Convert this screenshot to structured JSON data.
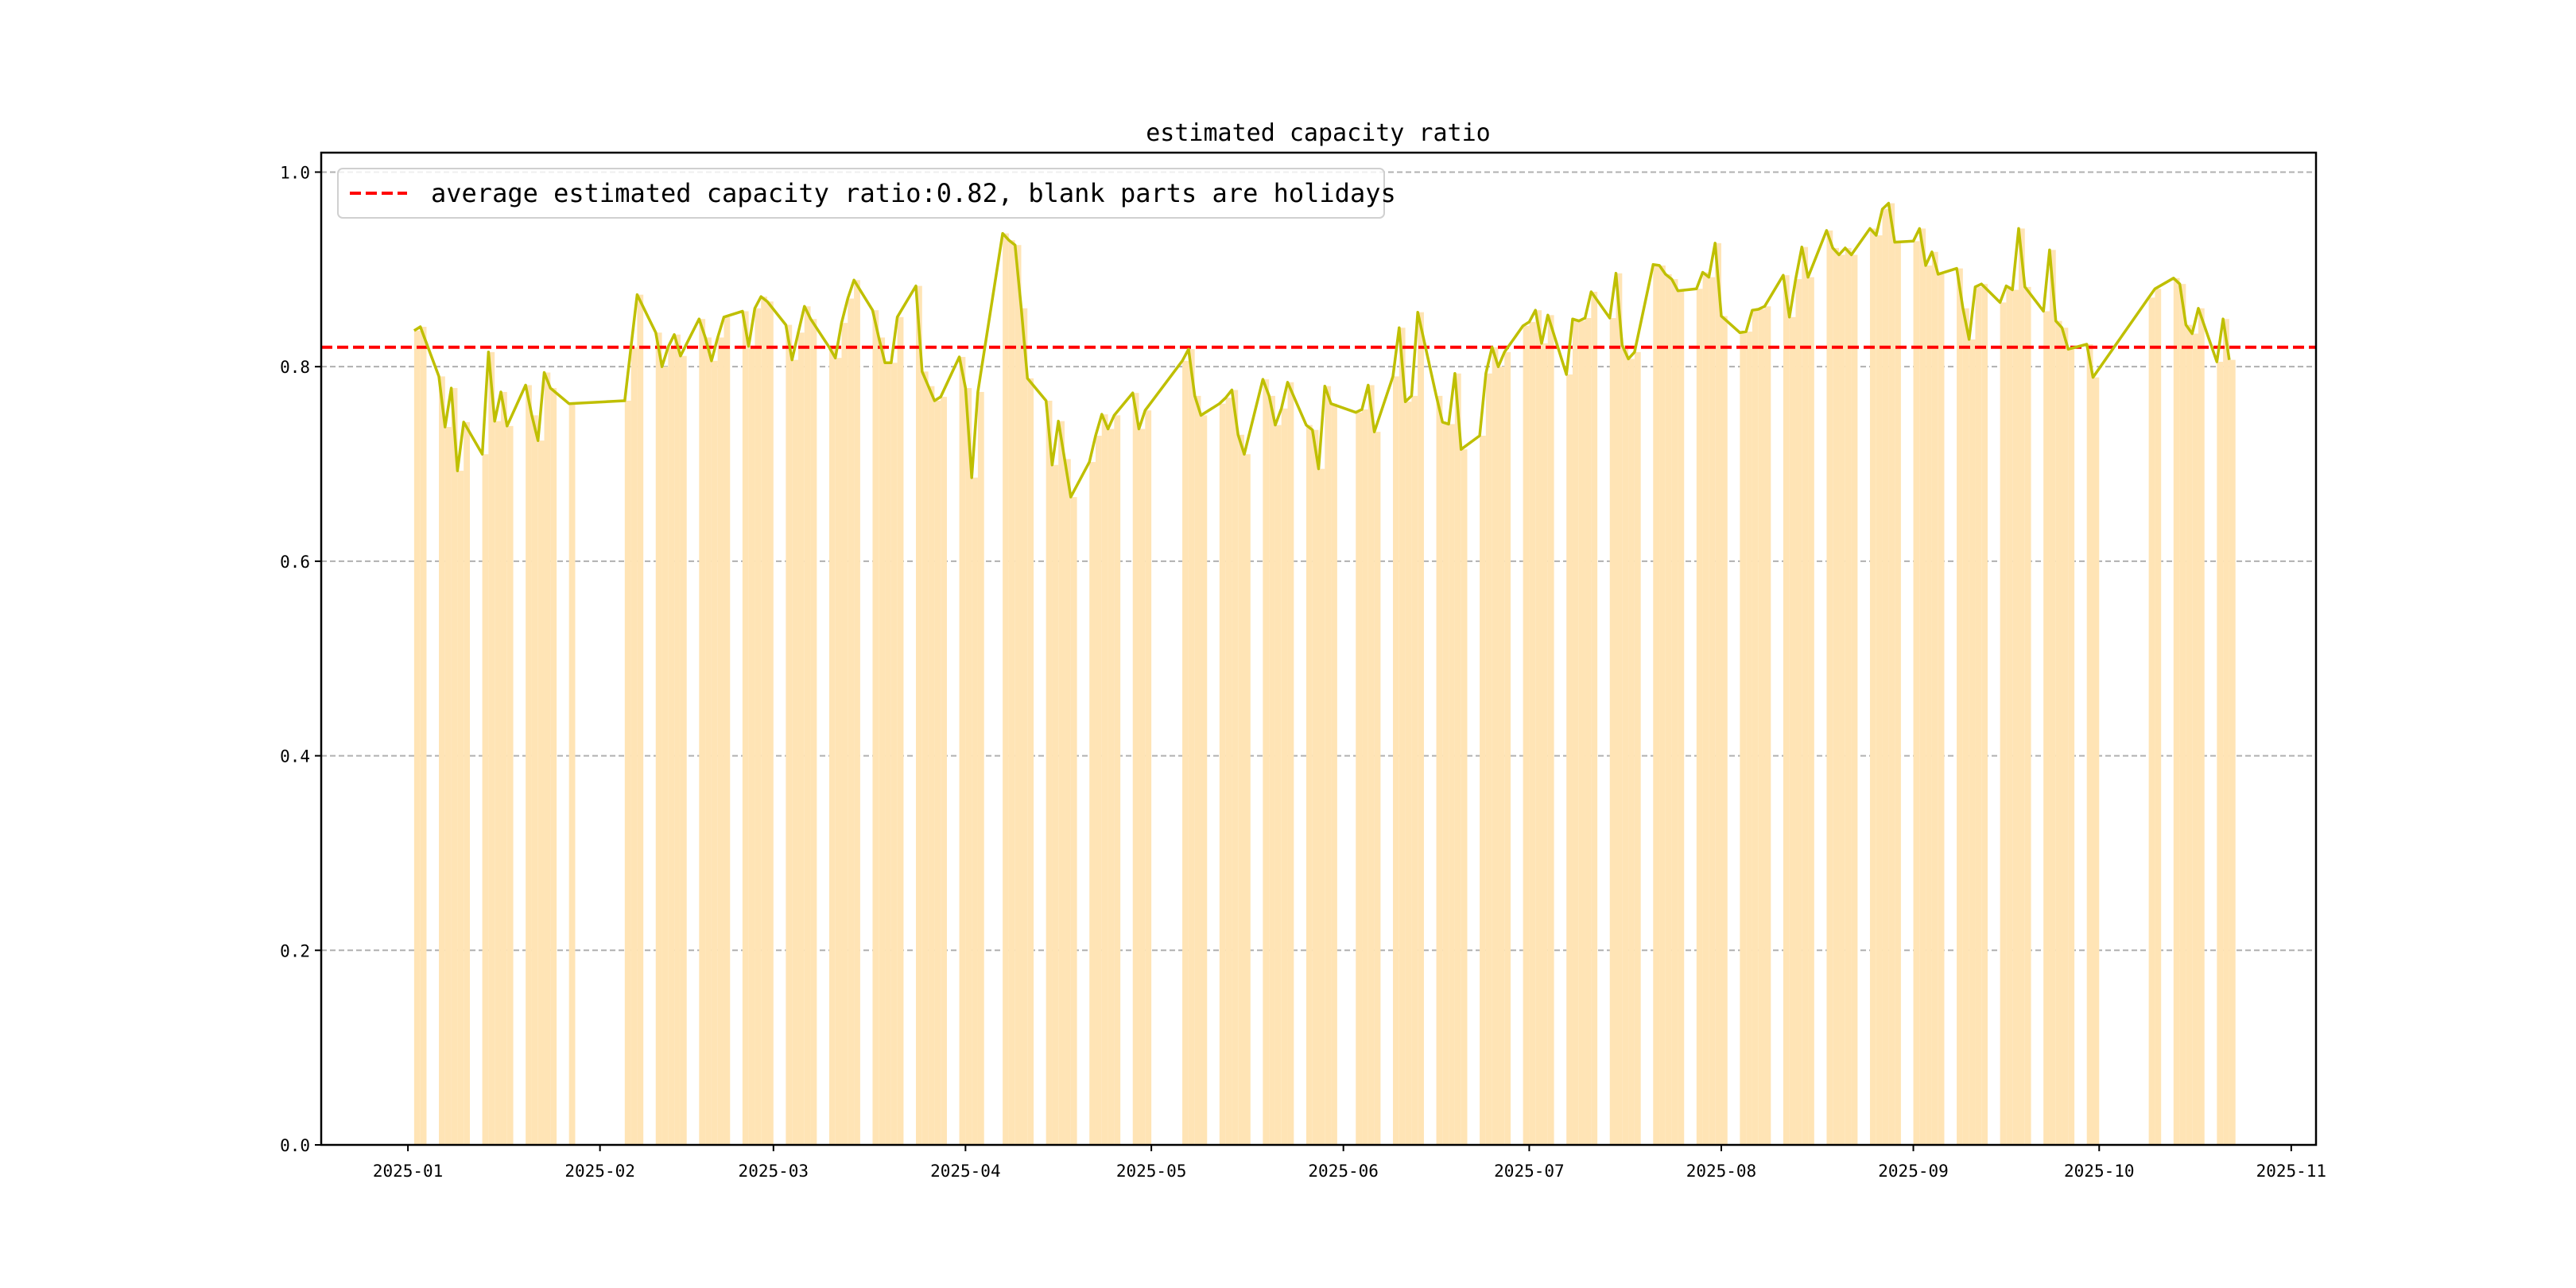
{
  "chart_data": {
    "type": "line",
    "title": "estimated capacity ratio",
    "xlabel": "",
    "ylabel": "",
    "xlim": [
      "2024-12-18",
      "2025-11-05"
    ],
    "ylim": [
      0,
      1.02
    ],
    "grid": "y-dashed",
    "legend": {
      "placement": "top-left",
      "label": "average estimated capacity ratio:0.82, blank parts are holidays"
    },
    "average": 0.82,
    "x_ticks": [
      {
        "date": "2025-01-01",
        "label": "2025-01"
      },
      {
        "date": "2025-02-01",
        "label": "2025-02"
      },
      {
        "date": "2025-03-01",
        "label": "2025-03"
      },
      {
        "date": "2025-04-01",
        "label": "2025-04"
      },
      {
        "date": "2025-05-01",
        "label": "2025-05"
      },
      {
        "date": "2025-06-01",
        "label": "2025-06"
      },
      {
        "date": "2025-07-01",
        "label": "2025-07"
      },
      {
        "date": "2025-08-01",
        "label": "2025-08"
      },
      {
        "date": "2025-09-01",
        "label": "2025-09"
      },
      {
        "date": "2025-10-01",
        "label": "2025-10"
      },
      {
        "date": "2025-11-01",
        "label": "2025-11"
      }
    ],
    "y_ticks": [
      {
        "value": 0.0,
        "label": "0.0"
      },
      {
        "value": 0.2,
        "label": "0.2"
      },
      {
        "value": 0.4,
        "label": "0.4"
      },
      {
        "value": 0.6,
        "label": "0.6"
      },
      {
        "value": 0.8,
        "label": "0.8"
      },
      {
        "value": 1.0,
        "label": "1.0"
      }
    ],
    "colors": {
      "line": "#bfbf00",
      "bars": "#ffe4b5",
      "average": "#ff0000",
      "grid": "#b0b0b0"
    },
    "series": [
      {
        "name": "estimated capacity ratio",
        "points": [
          [
            "2025-01-02",
            0.837
          ],
          [
            "2025-01-03",
            0.841
          ],
          [
            "2025-01-06",
            0.79
          ],
          [
            "2025-01-07",
            0.738
          ],
          [
            "2025-01-08",
            0.778
          ],
          [
            "2025-01-09",
            0.693
          ],
          [
            "2025-01-10",
            0.743
          ],
          [
            "2025-01-13",
            0.71
          ],
          [
            "2025-01-14",
            0.815
          ],
          [
            "2025-01-15",
            0.744
          ],
          [
            "2025-01-16",
            0.774
          ],
          [
            "2025-01-17",
            0.739
          ],
          [
            "2025-01-20",
            0.781
          ],
          [
            "2025-01-21",
            0.75
          ],
          [
            "2025-01-22",
            0.724
          ],
          [
            "2025-01-23",
            0.794
          ],
          [
            "2025-01-24",
            0.778
          ],
          [
            "2025-01-27",
            0.762
          ],
          [
            "2025-02-05",
            0.765
          ],
          [
            "2025-02-06",
            0.82
          ],
          [
            "2025-02-07",
            0.874
          ],
          [
            "2025-02-10",
            0.835
          ],
          [
            "2025-02-11",
            0.8
          ],
          [
            "2025-02-12",
            0.82
          ],
          [
            "2025-02-13",
            0.833
          ],
          [
            "2025-02-14",
            0.811
          ],
          [
            "2025-02-17",
            0.849
          ],
          [
            "2025-02-18",
            0.83
          ],
          [
            "2025-02-19",
            0.806
          ],
          [
            "2025-02-20",
            0.83
          ],
          [
            "2025-02-21",
            0.851
          ],
          [
            "2025-02-24",
            0.857
          ],
          [
            "2025-02-25",
            0.821
          ],
          [
            "2025-02-26",
            0.86
          ],
          [
            "2025-02-27",
            0.872
          ],
          [
            "2025-02-28",
            0.867
          ],
          [
            "2025-03-03",
            0.843
          ],
          [
            "2025-03-04",
            0.807
          ],
          [
            "2025-03-05",
            0.835
          ],
          [
            "2025-03-06",
            0.862
          ],
          [
            "2025-03-07",
            0.849
          ],
          [
            "2025-03-10",
            0.82
          ],
          [
            "2025-03-11",
            0.809
          ],
          [
            "2025-03-12",
            0.845
          ],
          [
            "2025-03-13",
            0.87
          ],
          [
            "2025-03-14",
            0.889
          ],
          [
            "2025-03-17",
            0.858
          ],
          [
            "2025-03-18",
            0.83
          ],
          [
            "2025-03-19",
            0.804
          ],
          [
            "2025-03-20",
            0.804
          ],
          [
            "2025-03-21",
            0.851
          ],
          [
            "2025-03-24",
            0.883
          ],
          [
            "2025-03-25",
            0.795
          ],
          [
            "2025-03-26",
            0.78
          ],
          [
            "2025-03-27",
            0.765
          ],
          [
            "2025-03-28",
            0.769
          ],
          [
            "2025-03-31",
            0.81
          ],
          [
            "2025-04-01",
            0.778
          ],
          [
            "2025-04-02",
            0.686
          ],
          [
            "2025-04-03",
            0.774
          ],
          [
            "2025-04-07",
            0.937
          ],
          [
            "2025-04-08",
            0.93
          ],
          [
            "2025-04-09",
            0.925
          ],
          [
            "2025-04-10",
            0.86
          ],
          [
            "2025-04-11",
            0.788
          ],
          [
            "2025-04-14",
            0.765
          ],
          [
            "2025-04-15",
            0.699
          ],
          [
            "2025-04-16",
            0.744
          ],
          [
            "2025-04-17",
            0.705
          ],
          [
            "2025-04-18",
            0.666
          ],
          [
            "2025-04-21",
            0.702
          ],
          [
            "2025-04-22",
            0.729
          ],
          [
            "2025-04-23",
            0.751
          ],
          [
            "2025-04-24",
            0.736
          ],
          [
            "2025-04-25",
            0.75
          ],
          [
            "2025-04-28",
            0.773
          ],
          [
            "2025-04-29",
            0.736
          ],
          [
            "2025-04-30",
            0.755
          ],
          [
            "2025-05-06",
            0.806
          ],
          [
            "2025-05-07",
            0.818
          ],
          [
            "2025-05-08",
            0.77
          ],
          [
            "2025-05-09",
            0.75
          ],
          [
            "2025-05-12",
            0.762
          ],
          [
            "2025-05-13",
            0.768
          ],
          [
            "2025-05-14",
            0.776
          ],
          [
            "2025-05-15",
            0.73
          ],
          [
            "2025-05-16",
            0.71
          ],
          [
            "2025-05-19",
            0.787
          ],
          [
            "2025-05-20",
            0.77
          ],
          [
            "2025-05-21",
            0.74
          ],
          [
            "2025-05-22",
            0.757
          ],
          [
            "2025-05-23",
            0.784
          ],
          [
            "2025-05-26",
            0.74
          ],
          [
            "2025-05-27",
            0.735
          ],
          [
            "2025-05-28",
            0.695
          ],
          [
            "2025-05-29",
            0.78
          ],
          [
            "2025-05-30",
            0.762
          ],
          [
            "2025-06-03",
            0.753
          ],
          [
            "2025-06-04",
            0.756
          ],
          [
            "2025-06-05",
            0.781
          ],
          [
            "2025-06-06",
            0.733
          ],
          [
            "2025-06-09",
            0.79
          ],
          [
            "2025-06-10",
            0.84
          ],
          [
            "2025-06-11",
            0.764
          ],
          [
            "2025-06-12",
            0.77
          ],
          [
            "2025-06-13",
            0.856
          ],
          [
            "2025-06-16",
            0.77
          ],
          [
            "2025-06-17",
            0.743
          ],
          [
            "2025-06-18",
            0.741
          ],
          [
            "2025-06-19",
            0.793
          ],
          [
            "2025-06-20",
            0.715
          ],
          [
            "2025-06-23",
            0.729
          ],
          [
            "2025-06-24",
            0.793
          ],
          [
            "2025-06-25",
            0.82
          ],
          [
            "2025-06-26",
            0.8
          ],
          [
            "2025-06-27",
            0.815
          ],
          [
            "2025-06-30",
            0.842
          ],
          [
            "2025-07-01",
            0.846
          ],
          [
            "2025-07-02",
            0.858
          ],
          [
            "2025-07-03",
            0.824
          ],
          [
            "2025-07-04",
            0.853
          ],
          [
            "2025-07-07",
            0.792
          ],
          [
            "2025-07-08",
            0.849
          ],
          [
            "2025-07-09",
            0.847
          ],
          [
            "2025-07-10",
            0.85
          ],
          [
            "2025-07-11",
            0.877
          ],
          [
            "2025-07-14",
            0.85
          ],
          [
            "2025-07-15",
            0.896
          ],
          [
            "2025-07-16",
            0.822
          ],
          [
            "2025-07-17",
            0.808
          ],
          [
            "2025-07-18",
            0.815
          ],
          [
            "2025-07-21",
            0.905
          ],
          [
            "2025-07-22",
            0.904
          ],
          [
            "2025-07-23",
            0.895
          ],
          [
            "2025-07-24",
            0.89
          ],
          [
            "2025-07-25",
            0.878
          ],
          [
            "2025-07-28",
            0.88
          ],
          [
            "2025-07-29",
            0.897
          ],
          [
            "2025-07-30",
            0.892
          ],
          [
            "2025-07-31",
            0.927
          ],
          [
            "2025-08-01",
            0.852
          ],
          [
            "2025-08-04",
            0.835
          ],
          [
            "2025-08-05",
            0.836
          ],
          [
            "2025-08-06",
            0.858
          ],
          [
            "2025-08-07",
            0.859
          ],
          [
            "2025-08-08",
            0.862
          ],
          [
            "2025-08-11",
            0.894
          ],
          [
            "2025-08-12",
            0.851
          ],
          [
            "2025-08-13",
            0.89
          ],
          [
            "2025-08-14",
            0.923
          ],
          [
            "2025-08-15",
            0.892
          ],
          [
            "2025-08-18",
            0.94
          ],
          [
            "2025-08-19",
            0.922
          ],
          [
            "2025-08-20",
            0.915
          ],
          [
            "2025-08-21",
            0.922
          ],
          [
            "2025-08-22",
            0.915
          ],
          [
            "2025-08-25",
            0.942
          ],
          [
            "2025-08-26",
            0.935
          ],
          [
            "2025-08-27",
            0.962
          ],
          [
            "2025-08-28",
            0.968
          ],
          [
            "2025-08-29",
            0.928
          ],
          [
            "2025-09-01",
            0.929
          ],
          [
            "2025-09-02",
            0.942
          ],
          [
            "2025-09-03",
            0.904
          ],
          [
            "2025-09-04",
            0.918
          ],
          [
            "2025-09-05",
            0.895
          ],
          [
            "2025-09-08",
            0.901
          ],
          [
            "2025-09-09",
            0.86
          ],
          [
            "2025-09-10",
            0.828
          ],
          [
            "2025-09-11",
            0.882
          ],
          [
            "2025-09-12",
            0.885
          ],
          [
            "2025-09-15",
            0.866
          ],
          [
            "2025-09-16",
            0.883
          ],
          [
            "2025-09-17",
            0.879
          ],
          [
            "2025-09-18",
            0.942
          ],
          [
            "2025-09-19",
            0.882
          ],
          [
            "2025-09-22",
            0.857
          ],
          [
            "2025-09-23",
            0.92
          ],
          [
            "2025-09-24",
            0.847
          ],
          [
            "2025-09-25",
            0.84
          ],
          [
            "2025-09-26",
            0.818
          ],
          [
            "2025-09-29",
            0.823
          ],
          [
            "2025-09-30",
            0.789
          ],
          [
            "2025-10-09",
            0.871
          ],
          [
            "2025-10-10",
            0.88
          ],
          [
            "2025-10-13",
            0.891
          ],
          [
            "2025-10-14",
            0.885
          ],
          [
            "2025-10-15",
            0.843
          ],
          [
            "2025-10-16",
            0.834
          ],
          [
            "2025-10-17",
            0.86
          ],
          [
            "2025-10-20",
            0.805
          ],
          [
            "2025-10-21",
            0.849
          ],
          [
            "2025-10-22",
            0.807
          ]
        ]
      }
    ]
  }
}
